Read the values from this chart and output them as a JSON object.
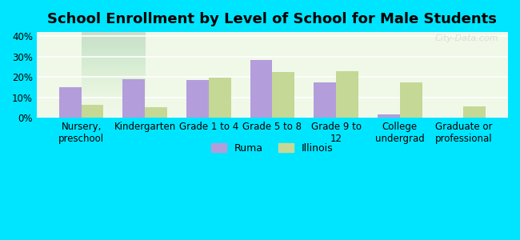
{
  "title": "School Enrollment by Level of School for Male Students",
  "categories": [
    "Nursery,\npreschool",
    "Kindergarten",
    "Grade 1 to 4",
    "Grade 5 to 8",
    "Grade 9 to\n12",
    "College\nundergrad",
    "Graduate or\nprofessional"
  ],
  "ruma_values": [
    15.0,
    19.0,
    18.5,
    28.5,
    17.5,
    1.5,
    0.0
  ],
  "illinois_values": [
    6.5,
    5.0,
    19.5,
    22.5,
    23.0,
    17.5,
    5.5
  ],
  "ruma_color": "#b39ddb",
  "illinois_color": "#c5d896",
  "background_color": "#00e5ff",
  "plot_bg_top": "#e8f5e9",
  "plot_bg_bottom": "#f9ffe8",
  "ylim": [
    0,
    42
  ],
  "yticks": [
    0,
    10,
    20,
    30,
    40
  ],
  "ytick_labels": [
    "0%",
    "10%",
    "20%",
    "30%",
    "40%"
  ],
  "legend_labels": [
    "Ruma",
    "Illinois"
  ],
  "bar_width": 0.35,
  "title_fontsize": 13,
  "axis_fontsize": 8.5,
  "legend_fontsize": 9,
  "watermark_text": "City-Data.com"
}
